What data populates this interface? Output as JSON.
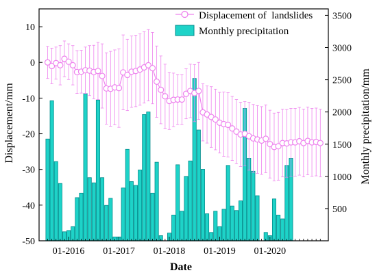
{
  "chart_data": {
    "type": "bar",
    "xlabel": "Date",
    "ylabel_left": "Displacement/mm",
    "ylabel_right": "Monthly precipitation/mm",
    "ylim_left": [
      -50,
      15
    ],
    "ylim_right": [
      0,
      3600
    ],
    "yticks_left": [
      "10",
      "0",
      "-10",
      "-20",
      "-30",
      "-40",
      "-50"
    ],
    "yticks_left_values": [
      10,
      0,
      -10,
      -20,
      -30,
      -40,
      -50
    ],
    "yticks_right": [
      "500",
      "1000",
      "1500",
      "2000",
      "2500",
      "3000",
      "3500"
    ],
    "yticks_right_values": [
      500,
      1000,
      1500,
      2000,
      2500,
      3000,
      3500
    ],
    "xticks": [
      "01-2016",
      "01-2017",
      "01-2018",
      "01-2019",
      "01-2020"
    ],
    "xticks_month_index": [
      5,
      17,
      29,
      41,
      53
    ],
    "months_count": 66,
    "legend_position": "top-right",
    "colors": {
      "bar_fill": "#1ed3c8",
      "bar_edge": "#008b8b",
      "line": "#ee82ee"
    },
    "series": [
      {
        "name": "Displacement of  landslides",
        "kind": "line_errorbar",
        "month_index": [
          0,
          1,
          2,
          3,
          4,
          5,
          6,
          7,
          8,
          9,
          10,
          11,
          12,
          13,
          14,
          15,
          16,
          17,
          18,
          19,
          20,
          21,
          22,
          23,
          24,
          25,
          26,
          27,
          28,
          29,
          30,
          31,
          32,
          33,
          34,
          35,
          36,
          37,
          38,
          39,
          40,
          41,
          42,
          43,
          44,
          45,
          46,
          47,
          48,
          49,
          50,
          51,
          52,
          53,
          54,
          55,
          56,
          57,
          58,
          59,
          60,
          61,
          62,
          63,
          64,
          65
        ],
        "values": [
          0.0,
          -1.0,
          -0.2,
          -0.8,
          1.0,
          0.2,
          -0.8,
          -2.7,
          -2.6,
          -2.2,
          -2.3,
          -2.7,
          -2.4,
          -3.8,
          -7.3,
          -7.4,
          -7.0,
          -7.2,
          -2.8,
          -3.5,
          -2.6,
          -2.4,
          -2.0,
          -1.4,
          -0.8,
          -1.6,
          -5.4,
          -7.7,
          -9.5,
          -10.8,
          -10.5,
          -10.4,
          -10.4,
          -8.8,
          -8.0,
          -8.6,
          -8.0,
          -14.0,
          -14.6,
          -15.3,
          -16.0,
          -16.9,
          -17.3,
          -17.5,
          -18.5,
          -19.4,
          -20.2,
          -20.0,
          -20.7,
          -21.3,
          -21.6,
          -21.9,
          -21.4,
          -22.9,
          -23.7,
          -23.5,
          -22.6,
          -22.7,
          -22.4,
          -22.4,
          -22.1,
          -22.6,
          -22.0,
          -22.4,
          -22.3,
          -22.6
        ],
        "errors": [
          4.5,
          5.0,
          4.5,
          5.5,
          5.0,
          5.0,
          5.5,
          6.0,
          6.0,
          6.5,
          7.0,
          7.5,
          8.0,
          9.0,
          10.0,
          10.5,
          10.5,
          11.0,
          10.5,
          10.0,
          10.0,
          10.0,
          10.0,
          10.0,
          10.0,
          10.0,
          10.0,
          9.5,
          9.0,
          8.0,
          7.5,
          7.0,
          7.0,
          7.0,
          7.5,
          8.0,
          8.0,
          8.0,
          8.0,
          8.5,
          8.5,
          8.5,
          9.0,
          9.0,
          9.0,
          9.0,
          9.0,
          9.0,
          9.5,
          9.5,
          9.5,
          9.5,
          9.5,
          9.5,
          9.5,
          9.5,
          9.5,
          9.5,
          9.5,
          9.5,
          9.5,
          9.5,
          9.5,
          9.5,
          9.5,
          9.5
        ]
      },
      {
        "name": "Monthly precipitation",
        "kind": "bar",
        "month_index": [
          0,
          1,
          2,
          3,
          4,
          5,
          6,
          7,
          8,
          9,
          10,
          11,
          12,
          13,
          14,
          15,
          16,
          17,
          18,
          19,
          20,
          21,
          22,
          23,
          24,
          25,
          26,
          27,
          28,
          29,
          30,
          31,
          32,
          33,
          34,
          35,
          36,
          37,
          38,
          39,
          40,
          41,
          42,
          43,
          44,
          45,
          46,
          47,
          48,
          49,
          50,
          51,
          52,
          53,
          54,
          55,
          56,
          57,
          58,
          59,
          60,
          61,
          62,
          63,
          64,
          65
        ],
        "values": [
          1580,
          2175,
          1230,
          890,
          140,
          160,
          220,
          670,
          740,
          2285,
          980,
          900,
          2185,
          980,
          550,
          660,
          60,
          60,
          820,
          1420,
          920,
          860,
          1100,
          1960,
          2000,
          740,
          1220,
          80,
          0,
          120,
          400,
          1180,
          460,
          1000,
          1240,
          2520,
          1720,
          1110,
          420,
          130,
          460,
          220,
          490,
          1170,
          540,
          470,
          620,
          2055,
          1280,
          1080,
          700,
          0,
          130,
          80,
          650,
          400,
          340,
          1170,
          1280,
          0,
          0,
          0,
          0,
          0,
          0,
          0
        ]
      }
    ]
  }
}
